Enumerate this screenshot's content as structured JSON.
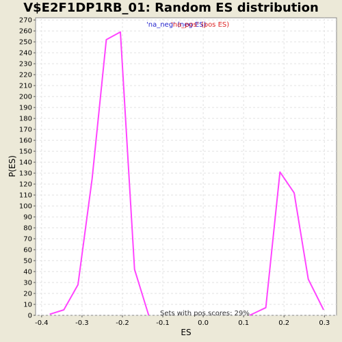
{
  "chart_data": {
    "type": "line",
    "title": "V$E2F1DP1RB_01: Random ES distribution",
    "xlabel": "ES",
    "ylabel": "P(ES)",
    "xlim": [
      -0.415,
      0.33
    ],
    "ylim": [
      0,
      272
    ],
    "x_ticks": [
      -0.4,
      -0.3,
      -0.2,
      -0.1,
      0.0,
      0.1,
      0.2,
      0.3
    ],
    "x_tick_labels": [
      "-0.4",
      "-0.3",
      "-0.2",
      "-0.1",
      "0.0",
      "0.1",
      "0.2",
      "0.3"
    ],
    "y_ticks": [
      0,
      10,
      20,
      30,
      40,
      50,
      60,
      70,
      80,
      90,
      100,
      110,
      120,
      130,
      140,
      150,
      160,
      170,
      180,
      190,
      200,
      210,
      220,
      230,
      240,
      250,
      260,
      270
    ],
    "grid": true,
    "background": "#ffffff",
    "series": [
      {
        "name": "'na_neg' (neg ES)",
        "color": "#ff44ff",
        "x": [
          -0.38,
          -0.345,
          -0.31,
          -0.275,
          -0.24,
          -0.205,
          -0.17,
          -0.135
        ],
        "y": [
          1,
          5,
          28,
          125,
          252,
          259,
          42,
          0
        ]
      },
      {
        "name": "'na_pos' (pos ES)",
        "color": "#ff44ff",
        "x": [
          0.115,
          0.155,
          0.19,
          0.225,
          0.26,
          0.298
        ],
        "y": [
          0,
          7,
          131,
          112,
          33,
          5
        ]
      }
    ],
    "legend": [
      {
        "text": "'na_neg' (neg ES)",
        "color": "#2222cc"
      },
      {
        "text": "'na_pos' (pos ES)",
        "color": "#dd2222"
      }
    ],
    "legend_placement": "top-center",
    "annotation": "Sets with pos scores: 29%"
  }
}
